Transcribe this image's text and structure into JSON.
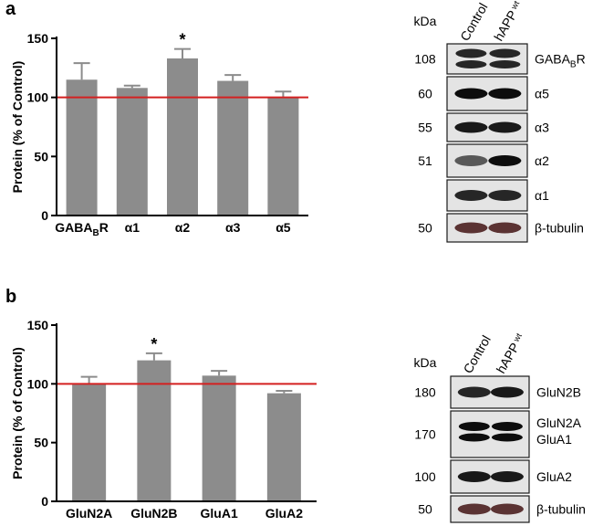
{
  "panel_labels": [
    "a",
    "b"
  ],
  "blots": [
    {
      "kda_label": "kDa",
      "lanes": [
        "Control",
        "hAPP"
      ],
      "lane_superscript": "wt",
      "rows": [
        {
          "kda": "108",
          "protein": "GABA",
          "sub": "B",
          "suffix": "R",
          "intensity": [
            0.85,
            0.85
          ],
          "double": true
        },
        {
          "kda": "60",
          "protein": "α5",
          "sub": "",
          "suffix": "",
          "intensity": [
            0.95,
            0.95
          ],
          "double": false
        },
        {
          "kda": "55",
          "protein": "α3",
          "sub": "",
          "suffix": "",
          "intensity": [
            0.9,
            0.9
          ],
          "double": false
        },
        {
          "kda": "51",
          "protein": "α2",
          "sub": "",
          "suffix": "",
          "intensity": [
            0.65,
            0.95
          ],
          "double": false
        },
        {
          "kda": "",
          "protein": "α1",
          "sub": "",
          "suffix": "",
          "intensity": [
            0.85,
            0.85
          ],
          "double": false
        },
        {
          "kda": "50",
          "protein": "β-tubulin",
          "sub": "",
          "suffix": "",
          "intensity": [
            0.8,
            0.8
          ],
          "double": false
        }
      ]
    },
    {
      "kda_label": "kDa",
      "lanes": [
        "Control",
        "hAPP"
      ],
      "lane_superscript": "wt",
      "rows": [
        {
          "kda": "180",
          "protein": "GluN2B",
          "sub": "",
          "suffix": "",
          "intensity": [
            0.85,
            0.9
          ],
          "double": false
        },
        {
          "kda": "170",
          "protein": "GluN2A",
          "protein2": "GluA1",
          "sub": "",
          "suffix": "",
          "intensity": [
            0.95,
            0.95
          ],
          "double": true
        },
        {
          "kda": "100",
          "protein": "GluA2",
          "sub": "",
          "suffix": "",
          "intensity": [
            0.9,
            0.9
          ],
          "double": false
        },
        {
          "kda": "50",
          "protein": "β-tubulin",
          "sub": "",
          "suffix": "",
          "intensity": [
            0.8,
            0.8
          ],
          "double": false
        }
      ]
    }
  ],
  "chart_data": [
    {
      "type": "bar",
      "panel": "a",
      "categories": [
        {
          "main": "GABA",
          "sub": "B",
          "suffix": "R"
        },
        {
          "main": "α1",
          "sub": "",
          "suffix": ""
        },
        {
          "main": "α2",
          "sub": "",
          "suffix": ""
        },
        {
          "main": "α3",
          "sub": "",
          "suffix": ""
        },
        {
          "main": "α5",
          "sub": "",
          "suffix": ""
        }
      ],
      "values": [
        115,
        108,
        133,
        114,
        100
      ],
      "errors": [
        14,
        2,
        8,
        5,
        5
      ],
      "significance": [
        "",
        "",
        "*",
        "",
        ""
      ],
      "ylabel": "Protein (% of Control)",
      "ylim": [
        0,
        150
      ],
      "yticks": [
        0,
        50,
        100,
        150
      ],
      "reference_line": 100,
      "bar_color": "#8c8c8c",
      "reference_color": "#d42020",
      "grid": false
    },
    {
      "type": "bar",
      "panel": "b",
      "categories": [
        {
          "main": "GluN2A",
          "sub": "",
          "suffix": ""
        },
        {
          "main": "GluN2B",
          "sub": "",
          "suffix": ""
        },
        {
          "main": "GluA1",
          "sub": "",
          "suffix": ""
        },
        {
          "main": "GluA2",
          "sub": "",
          "suffix": ""
        }
      ],
      "values": [
        100,
        120,
        107,
        92
      ],
      "errors": [
        6,
        6,
        4,
        2
      ],
      "significance": [
        "",
        "*",
        "",
        ""
      ],
      "ylabel": "Protein (% of Control)",
      "ylim": [
        0,
        150
      ],
      "yticks": [
        0,
        50,
        100,
        150
      ],
      "reference_line": 100,
      "bar_color": "#8c8c8c",
      "reference_color": "#d42020",
      "grid": false
    }
  ]
}
